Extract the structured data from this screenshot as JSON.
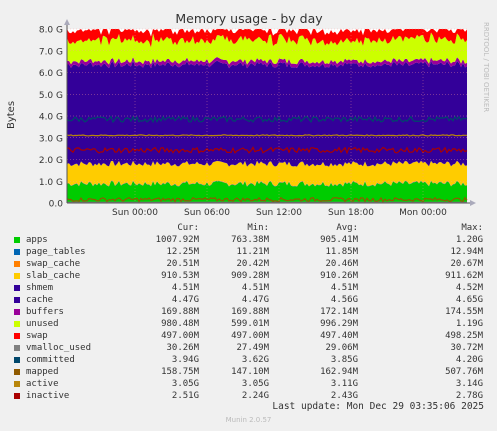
{
  "chart_data": {
    "type": "area",
    "title": "Memory usage - by day",
    "ylabel": "Bytes",
    "side_label": "RRDTOOL / TOBI OETIKER",
    "ylim": [
      0,
      8.0
    ],
    "y_unit": "G",
    "yticks": [
      "0.0",
      "1.0 G",
      "2.0 G",
      "3.0 G",
      "4.0 G",
      "5.0 G",
      "6.0 G",
      "7.0 G",
      "8.0 G"
    ],
    "xticks": [
      "Sun 00:00",
      "Sun 06:00",
      "Sun 12:00",
      "Sun 18:00",
      "Mon 00:00"
    ],
    "stack_order": [
      "apps",
      "page_tables",
      "swap_cache",
      "slab_cache",
      "shmem",
      "cache",
      "buffers",
      "unused",
      "swap"
    ],
    "line_series": [
      "vmalloc_used",
      "committed",
      "mapped",
      "active",
      "inactive"
    ],
    "legend_headers": [
      "Cur:",
      "Min:",
      "Avg:",
      "Max:"
    ],
    "series": [
      {
        "name": "apps",
        "color": "#00cc00",
        "cur": "1007.92M",
        "min": "763.38M",
        "avg": "905.41M",
        "max": "1.20G"
      },
      {
        "name": "page_tables",
        "color": "#0066b3",
        "cur": "12.25M",
        "min": "11.21M",
        "avg": "11.85M",
        "max": "12.94M"
      },
      {
        "name": "swap_cache",
        "color": "#ff8000",
        "cur": "20.51M",
        "min": "20.42M",
        "avg": "20.46M",
        "max": "20.67M"
      },
      {
        "name": "slab_cache",
        "color": "#ffcc00",
        "cur": "910.53M",
        "min": "909.28M",
        "avg": "910.26M",
        "max": "911.62M"
      },
      {
        "name": "shmem",
        "color": "#330099",
        "cur": "4.51M",
        "min": "4.51M",
        "avg": "4.51M",
        "max": "4.52M"
      },
      {
        "name": "cache",
        "color": "#330099",
        "cur": "4.47G",
        "min": "4.47G",
        "avg": "4.56G",
        "max": "4.65G"
      },
      {
        "name": "buffers",
        "color": "#990099",
        "cur": "169.88M",
        "min": "169.88M",
        "avg": "172.14M",
        "max": "174.55M"
      },
      {
        "name": "unused",
        "color": "#ccff00",
        "cur": "980.48M",
        "min": "599.01M",
        "avg": "996.29M",
        "max": "1.19G"
      },
      {
        "name": "swap",
        "color": "#ff0000",
        "cur": "497.00M",
        "min": "497.00M",
        "avg": "497.40M",
        "max": "498.25M"
      },
      {
        "name": "vmalloc_used",
        "color": "#808080",
        "cur": "30.26M",
        "min": "27.49M",
        "avg": "29.06M",
        "max": "30.72M"
      },
      {
        "name": "committed",
        "color": "#00476b",
        "cur": "3.94G",
        "min": "3.62G",
        "avg": "3.85G",
        "max": "4.20G"
      },
      {
        "name": "mapped",
        "color": "#8f5a00",
        "cur": "158.75M",
        "min": "147.10M",
        "avg": "162.94M",
        "max": "507.76M"
      },
      {
        "name": "active",
        "color": "#b8860b",
        "cur": "3.05G",
        "min": "3.05G",
        "avg": "3.11G",
        "max": "3.14G"
      },
      {
        "name": "inactive",
        "color": "#aa0000",
        "cur": "2.51G",
        "min": "2.24G",
        "avg": "2.43G",
        "max": "2.78G"
      }
    ]
  },
  "footer": {
    "last_update": "Last update: Mon Dec 29 03:35:06 2025",
    "version": "Munin 2.0.57"
  }
}
